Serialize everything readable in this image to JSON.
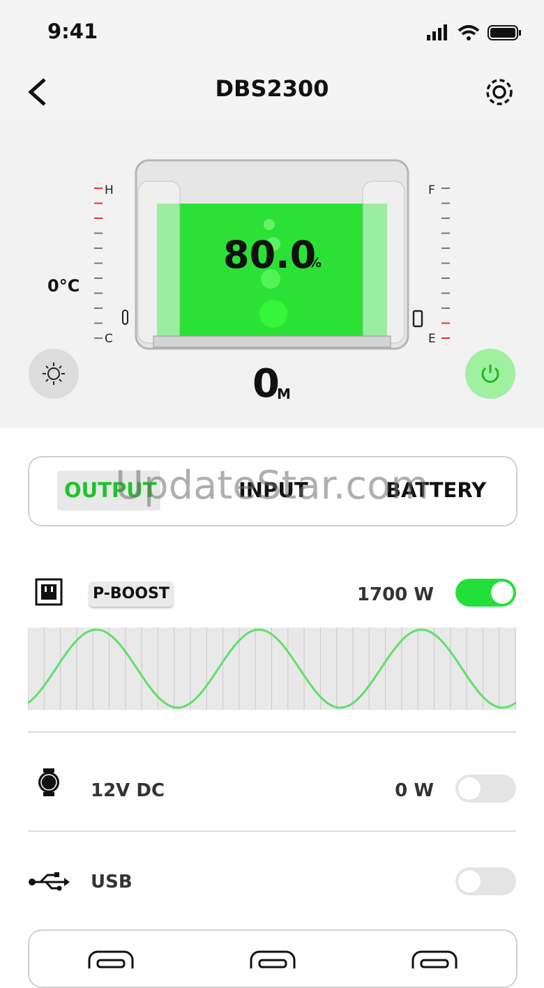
{
  "status_bar": {
    "time": "9:41"
  },
  "header": {
    "title": "DBS2300"
  },
  "device": {
    "temperature_high": "H",
    "temperature_low": "C",
    "temperature": "0°C",
    "battery_full": "F",
    "battery_empty": "E",
    "charge": "80.0",
    "charge_unit": "%",
    "time_remaining": "0",
    "time_unit": "M"
  },
  "tabs": [
    "OUTPUT",
    "INPUT",
    "BATTERY"
  ],
  "outputs": [
    {
      "label": "P-BOOST",
      "power": "1700 W",
      "on": true
    },
    {
      "label": "12V DC",
      "power": "0 W",
      "on": false
    },
    {
      "label": "USB",
      "on": false
    }
  ],
  "watermark": "UpdateStar.com"
}
